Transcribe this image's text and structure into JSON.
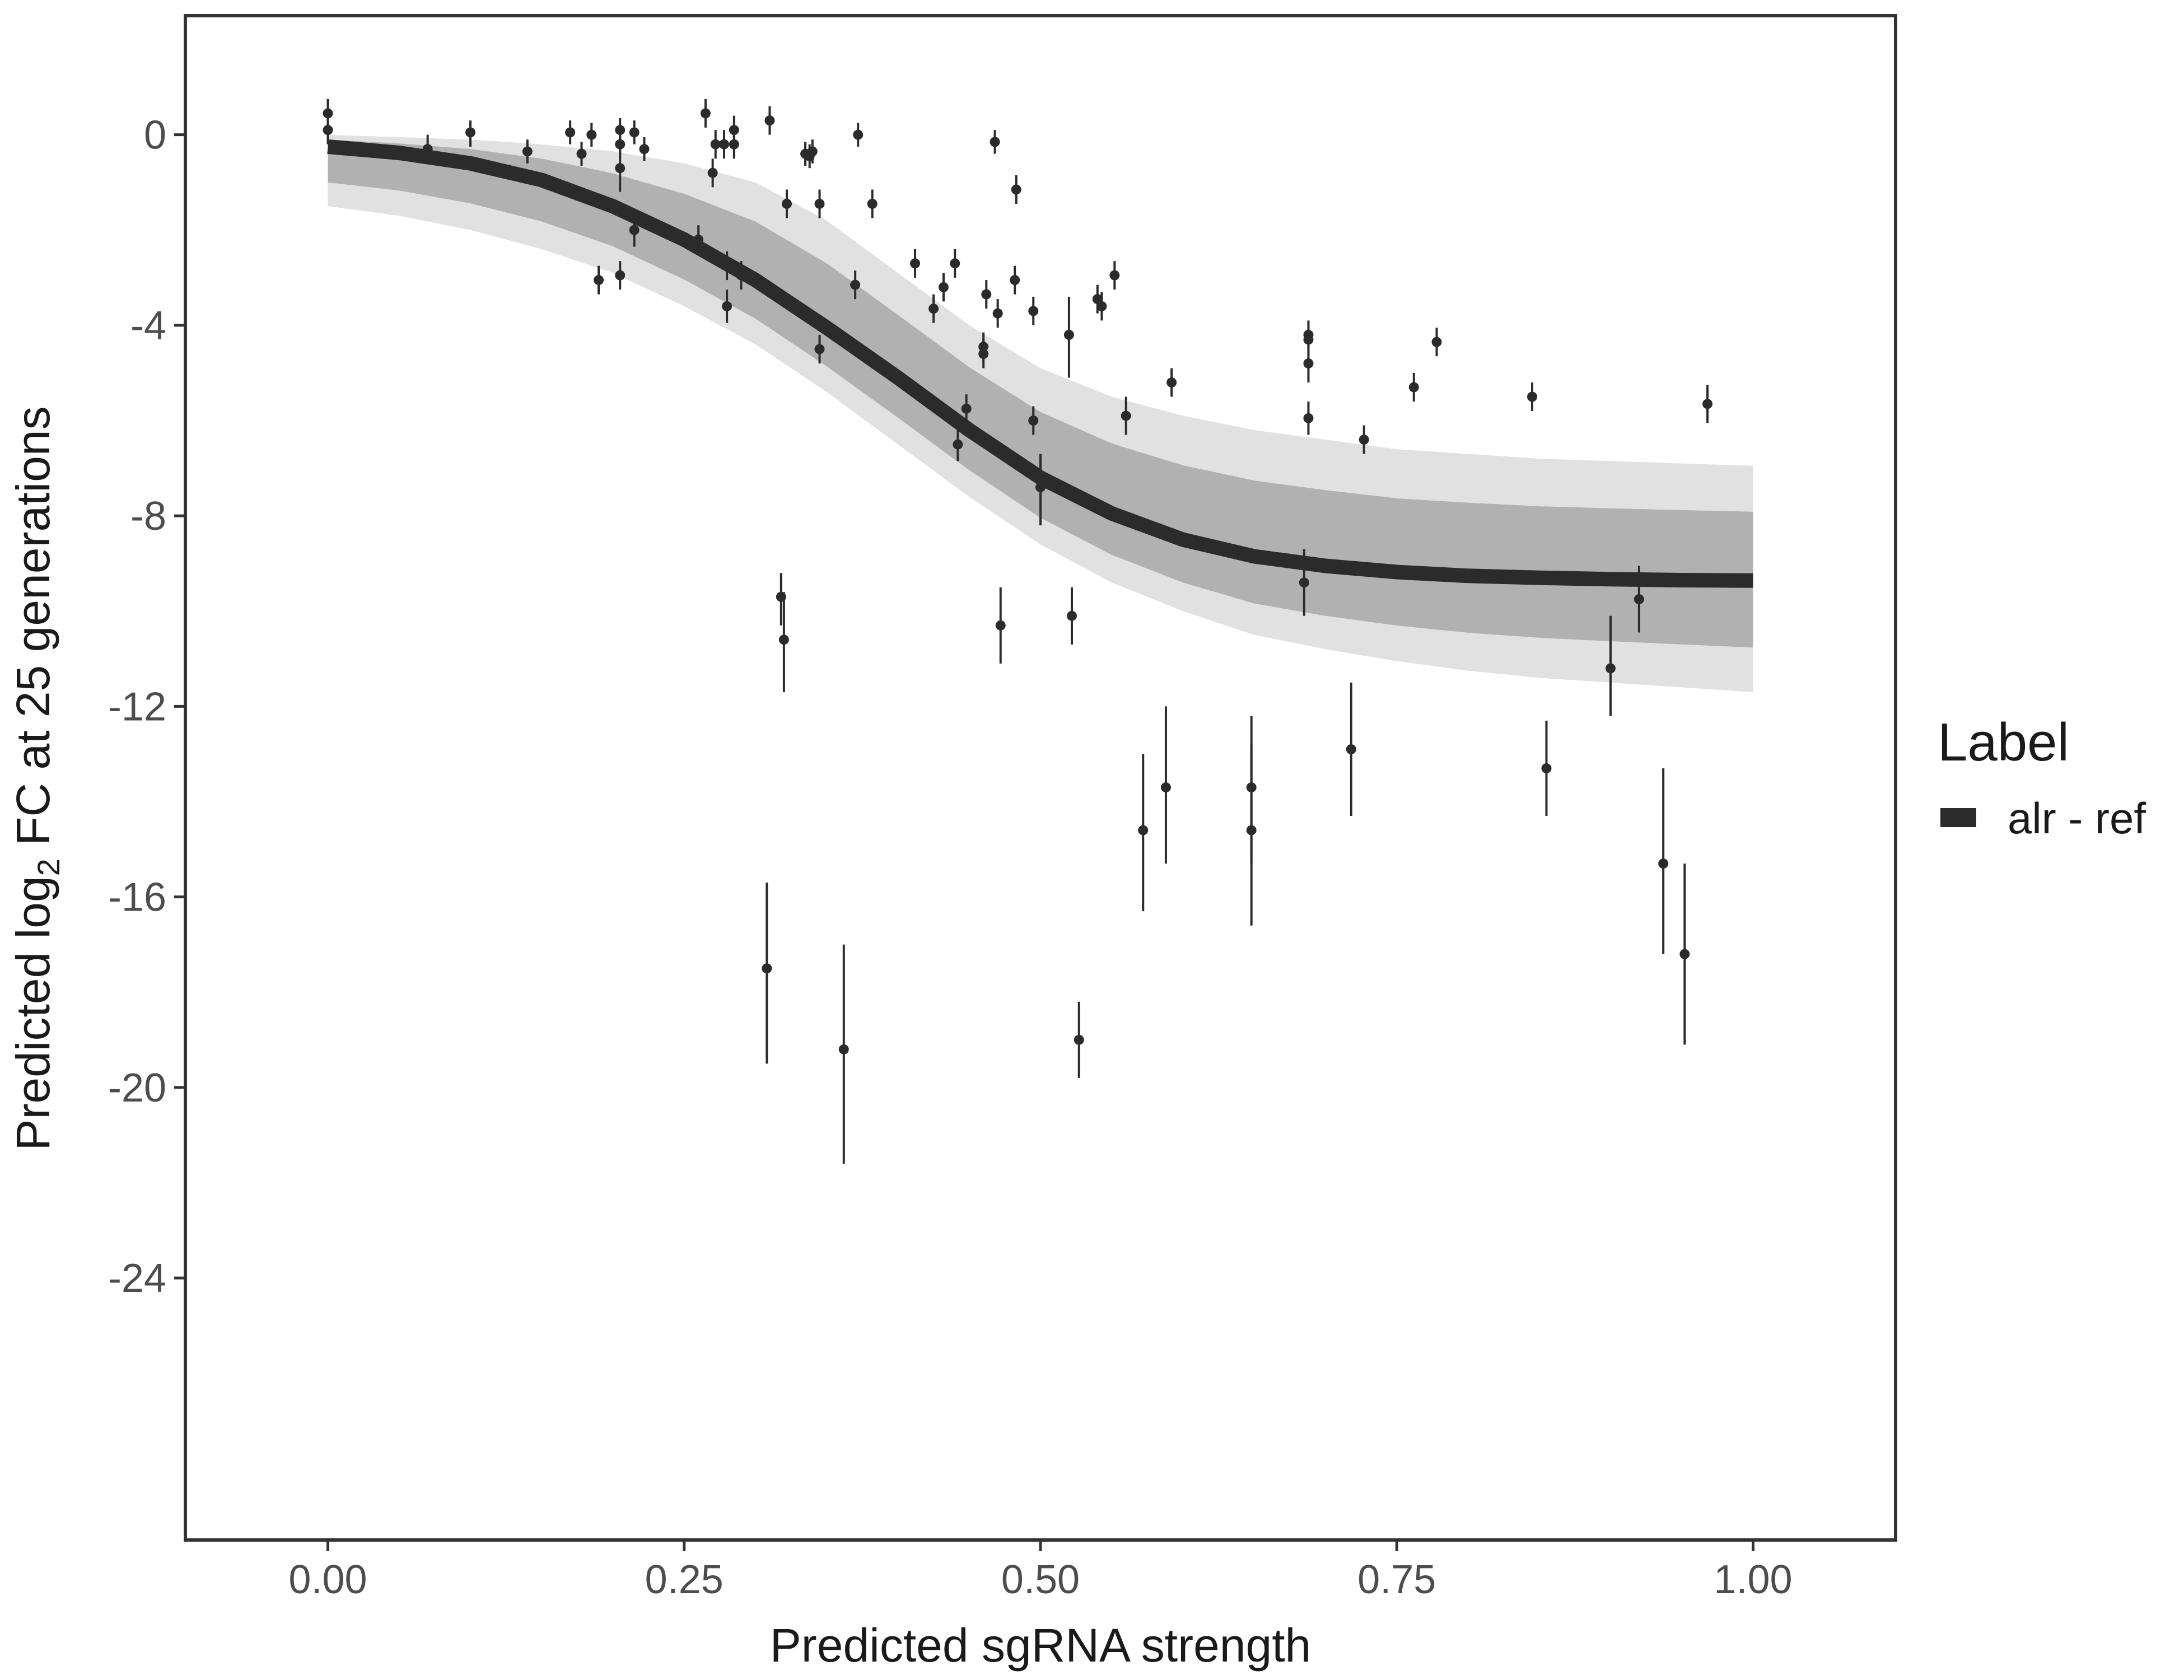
{
  "chart_data": {
    "type": "scatter",
    "xlabel": "Predicted sgRNA strength",
    "ylabel_prefix": "Predicted  log",
    "ylabel_sub": "2",
    "ylabel_suffix": " FC at 25 generations",
    "xlim": [
      -0.1,
      1.1
    ],
    "ylim": [
      -29.5,
      2.5
    ],
    "x_ticks": [
      0,
      0.25,
      0.5,
      0.75,
      1
    ],
    "x_tick_labels": [
      "0.00",
      "0.25",
      "0.50",
      "0.75",
      "1.00"
    ],
    "y_ticks": [
      0,
      -4,
      -8,
      -12,
      -16,
      -20,
      -24
    ],
    "y_tick_labels": [
      "0",
      "-4",
      "-8",
      "-12",
      "-16",
      "-20",
      "-24"
    ],
    "grid": false,
    "legend": {
      "title": "Label",
      "entries": [
        {
          "label": "alr - ref",
          "color": "#2b2b2b"
        }
      ],
      "position": "right"
    },
    "colors": {
      "fit_line": "#2b2b2b",
      "posterior_draws": "#a8a8a8",
      "points": "#2b2b2b"
    },
    "fit_curve": {
      "x": [
        0,
        0.05,
        0.1,
        0.15,
        0.2,
        0.25,
        0.3,
        0.35,
        0.4,
        0.45,
        0.5,
        0.55,
        0.6,
        0.65,
        0.7,
        0.75,
        0.8,
        0.85,
        0.9,
        0.95,
        1
      ],
      "y": [
        -0.25,
        -0.38,
        -0.6,
        -0.95,
        -1.5,
        -2.2,
        -3.05,
        -4.05,
        -5.1,
        -6.2,
        -7.2,
        -7.95,
        -8.5,
        -8.85,
        -9.05,
        -9.18,
        -9.26,
        -9.3,
        -9.33,
        -9.35,
        -9.36
      ]
    },
    "posterior_band": {
      "x": [
        0,
        0.05,
        0.1,
        0.15,
        0.2,
        0.25,
        0.3,
        0.35,
        0.4,
        0.45,
        0.5,
        0.55,
        0.6,
        0.65,
        0.7,
        0.75,
        0.8,
        0.85,
        0.9,
        0.95,
        1
      ],
      "upper": [
        0,
        -0.05,
        -0.1,
        -0.2,
        -0.35,
        -0.6,
        -1.0,
        -1.8,
        -2.9,
        -4.0,
        -4.9,
        -5.5,
        -5.9,
        -6.2,
        -6.4,
        -6.6,
        -6.7,
        -6.8,
        -6.85,
        -6.9,
        -6.95
      ],
      "lower": [
        -1.5,
        -1.7,
        -2.0,
        -2.4,
        -2.9,
        -3.6,
        -4.4,
        -5.4,
        -6.5,
        -7.6,
        -8.6,
        -9.4,
        -10.0,
        -10.5,
        -10.8,
        -11.05,
        -11.25,
        -11.4,
        -11.5,
        -11.6,
        -11.7
      ]
    },
    "points": [
      {
        "x": 0.0,
        "y": 0.45,
        "lo": -0.05,
        "hi": 0.75
      },
      {
        "x": 0.0,
        "y": 0.1,
        "lo": -0.2,
        "hi": 0.4
      },
      {
        "x": 0.07,
        "y": -0.3,
        "lo": -0.6,
        "hi": 0.0
      },
      {
        "x": 0.1,
        "y": 0.05,
        "lo": -0.25,
        "hi": 0.3
      },
      {
        "x": 0.14,
        "y": -0.35,
        "lo": -0.6,
        "hi": -0.1
      },
      {
        "x": 0.17,
        "y": 0.05,
        "lo": -0.2,
        "hi": 0.3
      },
      {
        "x": 0.178,
        "y": -0.4,
        "lo": -0.65,
        "hi": -0.15
      },
      {
        "x": 0.185,
        "y": 0.0,
        "lo": -0.25,
        "hi": 0.25
      },
      {
        "x": 0.19,
        "y": -3.05,
        "lo": -3.35,
        "hi": -2.75
      },
      {
        "x": 0.205,
        "y": 0.1,
        "lo": -0.2,
        "hi": 0.35
      },
      {
        "x": 0.205,
        "y": -0.2,
        "lo": -0.5,
        "hi": 0.1
      },
      {
        "x": 0.205,
        "y": -0.7,
        "lo": -1.2,
        "hi": -0.2
      },
      {
        "x": 0.205,
        "y": -2.95,
        "lo": -3.25,
        "hi": -2.65
      },
      {
        "x": 0.215,
        "y": 0.05,
        "lo": -0.2,
        "hi": 0.3
      },
      {
        "x": 0.215,
        "y": -2.0,
        "lo": -2.35,
        "hi": -1.7
      },
      {
        "x": 0.222,
        "y": -0.3,
        "lo": -0.55,
        "hi": -0.05
      },
      {
        "x": 0.26,
        "y": -2.2,
        "lo": -2.5,
        "hi": -1.9
      },
      {
        "x": 0.265,
        "y": 0.45,
        "lo": 0.15,
        "hi": 0.75
      },
      {
        "x": 0.27,
        "y": -0.8,
        "lo": -1.1,
        "hi": -0.5
      },
      {
        "x": 0.272,
        "y": -0.2,
        "lo": -0.5,
        "hi": 0.1
      },
      {
        "x": 0.278,
        "y": -0.2,
        "lo": -0.5,
        "hi": 0.1
      },
      {
        "x": 0.28,
        "y": -2.75,
        "lo": -3.05,
        "hi": -2.45
      },
      {
        "x": 0.28,
        "y": -3.6,
        "lo": -3.95,
        "hi": -3.25
      },
      {
        "x": 0.285,
        "y": 0.1,
        "lo": -0.2,
        "hi": 0.4
      },
      {
        "x": 0.285,
        "y": -0.2,
        "lo": -0.5,
        "hi": 0.1
      },
      {
        "x": 0.29,
        "y": -2.95,
        "lo": -3.25,
        "hi": -2.65
      },
      {
        "x": 0.31,
        "y": 0.3,
        "lo": 0.0,
        "hi": 0.6
      },
      {
        "x": 0.308,
        "y": -17.5,
        "lo": -19.5,
        "hi": -15.7
      },
      {
        "x": 0.318,
        "y": -9.7,
        "lo": -10.3,
        "hi": -9.2
      },
      {
        "x": 0.32,
        "y": -10.6,
        "lo": -11.7,
        "hi": -9.6
      },
      {
        "x": 0.322,
        "y": -1.45,
        "lo": -1.75,
        "hi": -1.15
      },
      {
        "x": 0.335,
        "y": -0.4,
        "lo": -0.65,
        "hi": -0.15
      },
      {
        "x": 0.338,
        "y": -0.45,
        "lo": -0.7,
        "hi": -0.2
      },
      {
        "x": 0.34,
        "y": -0.35,
        "lo": -0.6,
        "hi": -0.1
      },
      {
        "x": 0.345,
        "y": -1.45,
        "lo": -1.75,
        "hi": -1.15
      },
      {
        "x": 0.345,
        "y": -4.5,
        "lo": -4.8,
        "hi": -4.2
      },
      {
        "x": 0.362,
        "y": -19.2,
        "lo": -21.6,
        "hi": -17.0
      },
      {
        "x": 0.37,
        "y": -3.15,
        "lo": -3.45,
        "hi": -2.85
      },
      {
        "x": 0.372,
        "y": 0.0,
        "lo": -0.25,
        "hi": 0.25
      },
      {
        "x": 0.382,
        "y": -1.45,
        "lo": -1.75,
        "hi": -1.15
      },
      {
        "x": 0.412,
        "y": -2.7,
        "lo": -3.0,
        "hi": -2.4
      },
      {
        "x": 0.425,
        "y": -3.65,
        "lo": -3.95,
        "hi": -3.35
      },
      {
        "x": 0.432,
        "y": -3.2,
        "lo": -3.5,
        "hi": -2.9
      },
      {
        "x": 0.44,
        "y": -2.7,
        "lo": -3.0,
        "hi": -2.4
      },
      {
        "x": 0.442,
        "y": -6.5,
        "lo": -6.85,
        "hi": -6.15
      },
      {
        "x": 0.448,
        "y": -5.75,
        "lo": -6.05,
        "hi": -5.45
      },
      {
        "x": 0.46,
        "y": -4.45,
        "lo": -4.75,
        "hi": -4.15
      },
      {
        "x": 0.46,
        "y": -4.6,
        "lo": -4.9,
        "hi": -4.3
      },
      {
        "x": 0.462,
        "y": -3.35,
        "lo": -3.65,
        "hi": -3.05
      },
      {
        "x": 0.47,
        "y": -3.75,
        "lo": -4.05,
        "hi": -3.45
      },
      {
        "x": 0.468,
        "y": -0.15,
        "lo": -0.4,
        "hi": 0.1
      },
      {
        "x": 0.472,
        "y": -10.3,
        "lo": -11.1,
        "hi": -9.5
      },
      {
        "x": 0.482,
        "y": -3.05,
        "lo": -3.35,
        "hi": -2.75
      },
      {
        "x": 0.483,
        "y": -1.15,
        "lo": -1.45,
        "hi": -0.85
      },
      {
        "x": 0.495,
        "y": -6.0,
        "lo": -6.3,
        "hi": -5.7
      },
      {
        "x": 0.495,
        "y": -3.7,
        "lo": -4.0,
        "hi": -3.4
      },
      {
        "x": 0.5,
        "y": -7.4,
        "lo": -8.2,
        "hi": -6.7
      },
      {
        "x": 0.52,
        "y": -4.2,
        "lo": -5.1,
        "hi": -3.4
      },
      {
        "x": 0.522,
        "y": -10.1,
        "lo": -10.7,
        "hi": -9.5
      },
      {
        "x": 0.527,
        "y": -19.0,
        "lo": -19.8,
        "hi": -18.2
      },
      {
        "x": 0.54,
        "y": -3.45,
        "lo": -3.75,
        "hi": -3.15
      },
      {
        "x": 0.543,
        "y": -3.6,
        "lo": -3.9,
        "hi": -3.3
      },
      {
        "x": 0.552,
        "y": -2.95,
        "lo": -3.25,
        "hi": -2.65
      },
      {
        "x": 0.56,
        "y": -5.9,
        "lo": -6.3,
        "hi": -5.5
      },
      {
        "x": 0.572,
        "y": -14.6,
        "lo": -16.3,
        "hi": -13.0
      },
      {
        "x": 0.588,
        "y": -13.7,
        "lo": -15.3,
        "hi": -12.0
      },
      {
        "x": 0.592,
        "y": -5.2,
        "lo": -5.5,
        "hi": -4.9
      },
      {
        "x": 0.648,
        "y": -13.7,
        "lo": -15.3,
        "hi": -12.2
      },
      {
        "x": 0.648,
        "y": -14.6,
        "lo": -16.6,
        "hi": -12.8
      },
      {
        "x": 0.685,
        "y": -9.4,
        "lo": -10.1,
        "hi": -8.7
      },
      {
        "x": 0.688,
        "y": -4.2,
        "lo": -4.5,
        "hi": -3.9
      },
      {
        "x": 0.688,
        "y": -4.3,
        "lo": -4.6,
        "hi": -4.0
      },
      {
        "x": 0.688,
        "y": -4.8,
        "lo": -5.2,
        "hi": -4.4
      },
      {
        "x": 0.688,
        "y": -5.95,
        "lo": -6.3,
        "hi": -5.6
      },
      {
        "x": 0.718,
        "y": -12.9,
        "lo": -14.3,
        "hi": -11.5
      },
      {
        "x": 0.727,
        "y": -6.4,
        "lo": -6.7,
        "hi": -6.1
      },
      {
        "x": 0.762,
        "y": -5.3,
        "lo": -5.6,
        "hi": -5.0
      },
      {
        "x": 0.778,
        "y": -4.35,
        "lo": -4.65,
        "hi": -4.05
      },
      {
        "x": 0.845,
        "y": -5.5,
        "lo": -5.8,
        "hi": -5.2
      },
      {
        "x": 0.855,
        "y": -13.3,
        "lo": -14.3,
        "hi": -12.3
      },
      {
        "x": 0.9,
        "y": -11.2,
        "lo": -12.2,
        "hi": -10.1
      },
      {
        "x": 0.92,
        "y": -9.75,
        "lo": -10.45,
        "hi": -9.05
      },
      {
        "x": 0.937,
        "y": -15.3,
        "lo": -17.2,
        "hi": -13.3
      },
      {
        "x": 0.952,
        "y": -17.2,
        "lo": -19.1,
        "hi": -15.3
      },
      {
        "x": 0.968,
        "y": -5.65,
        "lo": -6.05,
        "hi": -5.25
      }
    ]
  }
}
